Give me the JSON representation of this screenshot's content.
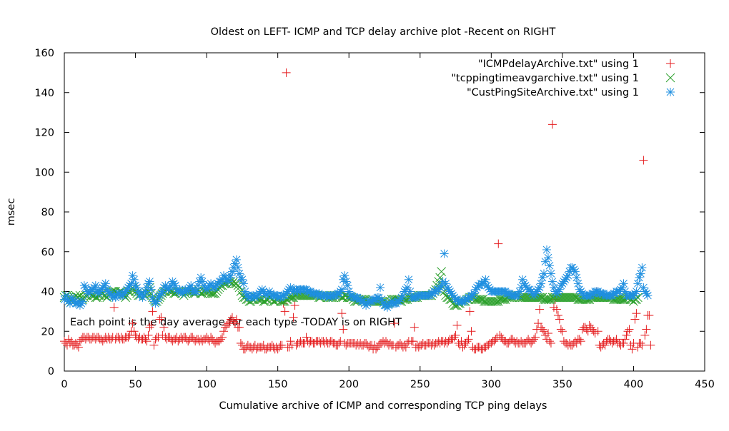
{
  "chart_data": {
    "type": "scatter",
    "title": "Oldest on LEFT- ICMP and TCP delay archive plot -Recent on RIGHT",
    "xlabel": "Cumulative archive of ICMP and corresponding TCP ping delays",
    "ylabel": "msec",
    "xlim": [
      0,
      450
    ],
    "ylim": [
      0,
      160
    ],
    "xticks": [
      0,
      50,
      100,
      150,
      200,
      250,
      300,
      350,
      400,
      450
    ],
    "yticks": [
      0,
      20,
      40,
      60,
      80,
      100,
      120,
      140,
      160
    ],
    "grid": false,
    "legend_position": "top-right",
    "annotation": "Each point is the day average for each type -TODAY is on RIGHT",
    "series": [
      {
        "name": "\"ICMPdelayArchive.txt\" using 1",
        "marker": "plus",
        "color": "#e41a1c",
        "values": [
          15,
          14,
          13,
          16,
          14,
          15,
          13,
          13,
          14,
          13,
          12,
          15,
          16,
          17,
          17,
          16,
          17,
          17,
          16,
          16,
          17,
          17,
          16,
          17,
          17,
          16,
          16,
          15,
          16,
          17,
          16,
          17,
          16,
          16,
          17,
          32,
          16,
          17,
          17,
          16,
          17,
          16,
          16,
          17,
          17,
          17,
          18,
          20,
          24,
          20,
          18,
          17,
          16,
          17,
          16,
          16,
          17,
          16,
          15,
          18,
          22,
          23,
          30,
          13,
          16,
          17,
          17,
          26,
          27,
          18,
          22,
          17,
          16,
          17,
          17,
          16,
          15,
          16,
          16,
          17,
          15,
          16,
          17,
          16,
          17,
          17,
          16,
          15,
          16,
          17,
          17,
          16,
          15,
          16,
          16,
          15,
          16,
          15,
          16,
          16,
          17,
          16,
          15,
          17,
          16,
          15,
          14,
          15,
          15,
          15,
          16,
          17,
          20,
          22,
          23,
          24,
          24,
          26,
          27,
          25,
          24,
          26,
          22,
          22,
          14,
          13,
          11,
          11,
          12,
          13,
          12,
          12,
          11,
          12,
          13,
          11,
          12,
          12,
          12,
          12,
          13,
          11,
          11,
          12,
          12,
          12,
          13,
          12,
          11,
          12,
          11,
          12,
          13,
          13,
          34,
          30,
          150,
          12,
          12,
          15,
          13,
          27,
          33,
          13,
          14,
          14,
          15,
          14,
          14,
          14,
          17,
          15,
          14,
          15,
          15,
          14,
          14,
          15,
          15,
          15,
          14,
          15,
          15,
          14,
          15,
          14,
          14,
          15,
          15,
          14,
          14,
          13,
          13,
          14,
          15,
          29,
          21,
          14,
          13,
          14,
          14,
          14,
          14,
          14,
          14,
          13,
          14,
          13,
          14,
          13,
          13,
          14,
          14,
          13,
          12,
          13,
          13,
          11,
          13,
          11,
          12,
          13,
          14,
          14,
          15,
          14,
          15,
          14,
          13,
          14,
          13,
          13,
          24,
          12,
          13,
          13,
          14,
          13,
          12,
          13,
          12,
          14,
          15,
          40,
          15,
          15,
          22,
          12,
          13,
          12,
          13,
          13,
          14,
          13,
          13,
          14,
          14,
          14,
          13,
          14,
          13,
          14,
          14,
          15,
          14,
          15,
          15,
          14,
          15,
          14,
          15,
          16,
          16,
          16,
          17,
          18,
          23,
          14,
          13,
          15,
          12,
          13,
          14,
          15,
          16,
          30,
          20,
          12,
          11,
          11,
          12,
          12,
          12,
          11,
          11,
          12,
          12,
          13,
          13,
          14,
          14,
          15,
          15,
          16,
          17,
          64,
          18,
          17,
          16,
          15,
          15,
          14,
          14,
          15,
          16,
          16,
          15,
          14,
          15,
          14,
          14,
          15,
          14,
          14,
          14,
          15,
          16,
          15,
          14,
          15,
          16,
          17,
          21,
          24,
          31,
          22,
          21,
          20,
          18,
          16,
          19,
          15,
          14,
          124,
          32,
          36,
          31,
          28,
          26,
          21,
          20,
          15,
          14,
          14,
          13,
          14,
          13,
          13,
          14,
          15,
          14,
          16,
          16,
          15,
          21,
          22,
          22,
          21,
          20,
          23,
          22,
          21,
          20,
          19,
          40,
          20,
          13,
          12,
          13,
          14,
          13,
          15,
          16,
          16,
          15,
          14,
          15,
          15,
          16,
          14,
          14,
          13,
          14,
          14,
          16,
          18,
          20,
          21,
          13,
          11,
          14,
          26,
          29,
          12,
          14,
          14,
          13,
          106,
          18,
          21,
          28,
          28,
          13
        ]
      },
      {
        "name": "\"tcppingtimeavgarchive.txt\" using 1",
        "marker": "x",
        "color": "#2ca02c",
        "values": [
          37,
          38,
          38,
          37,
          36,
          35,
          36,
          37,
          38,
          37,
          37,
          38,
          37,
          36,
          37,
          38,
          38,
          39,
          39,
          38,
          38,
          38,
          37,
          37,
          38,
          38,
          39,
          39,
          38,
          38,
          37,
          38,
          39,
          40,
          40,
          40,
          40,
          39,
          39,
          40,
          40,
          39,
          38,
          37,
          38,
          40,
          40,
          41,
          42,
          41,
          40,
          39,
          38,
          38,
          39,
          39,
          38,
          38,
          39,
          40,
          42,
          39,
          37,
          36,
          35,
          35,
          36,
          37,
          38,
          39,
          40,
          40,
          41,
          41,
          40,
          40,
          40,
          39,
          39,
          40,
          40,
          40,
          40,
          39,
          38,
          39,
          40,
          40,
          40,
          40,
          40,
          39,
          39,
          40,
          41,
          40,
          39,
          39,
          40,
          40,
          40,
          40,
          40,
          39,
          39,
          39,
          39,
          40,
          41,
          42,
          43,
          43,
          44,
          44,
          44,
          45,
          45,
          45,
          44,
          45,
          44,
          44,
          43,
          42,
          40,
          38,
          37,
          37,
          36,
          36,
          35,
          35,
          36,
          36,
          37,
          37,
          36,
          36,
          36,
          36,
          35,
          35,
          36,
          36,
          37,
          37,
          36,
          35,
          35,
          36,
          36,
          36,
          35,
          35,
          35,
          35,
          36,
          36,
          37,
          37,
          37,
          37,
          38,
          38,
          38,
          38,
          38,
          38,
          38,
          38,
          38,
          38,
          38,
          38,
          38,
          38,
          38,
          38,
          38,
          37,
          37,
          38,
          38,
          38,
          38,
          37,
          37,
          37,
          37,
          37,
          38,
          38,
          38,
          38,
          38,
          37,
          37,
          38,
          38,
          37,
          37,
          37,
          37,
          36,
          35,
          35,
          35,
          36,
          36,
          36,
          36,
          36,
          36,
          35,
          35,
          35,
          35,
          35,
          35,
          35,
          35,
          35,
          35,
          35,
          35,
          35,
          34,
          34,
          34,
          35,
          36,
          36,
          36,
          36,
          36,
          36,
          35,
          35,
          36,
          36,
          36,
          36,
          37,
          37,
          37,
          37,
          37,
          37,
          37,
          38,
          38,
          38,
          38,
          38,
          38,
          38,
          38,
          38,
          38,
          39,
          40,
          41,
          43,
          45,
          47,
          50,
          42,
          40,
          38,
          37,
          37,
          36,
          36,
          34,
          33,
          33,
          33,
          34,
          34,
          35,
          35,
          35,
          35,
          36,
          36,
          37,
          37,
          37,
          37,
          36,
          36,
          36,
          36,
          36,
          36,
          35,
          35,
          35,
          35,
          35,
          35,
          35,
          35,
          35,
          35,
          35,
          36,
          36,
          36,
          36,
          36,
          37,
          37,
          37,
          37,
          37,
          38,
          38,
          38,
          38,
          37,
          37,
          37,
          37,
          37,
          37,
          37,
          37,
          37,
          37,
          37,
          37,
          37,
          37,
          37,
          37,
          37,
          36,
          36,
          36,
          36,
          36,
          36,
          37,
          37,
          37,
          37,
          37,
          37,
          37,
          37,
          37,
          37,
          37,
          37,
          37,
          37,
          37,
          37,
          37,
          37,
          36,
          36,
          36,
          36,
          36,
          36,
          36,
          36,
          36,
          37,
          37,
          37,
          37,
          37,
          37,
          37,
          37,
          37,
          37,
          37,
          37,
          37,
          37,
          37,
          37,
          36,
          36,
          36,
          36,
          36,
          36,
          36,
          36,
          36,
          37,
          37,
          37,
          36,
          36,
          35,
          36,
          36,
          37
        ]
      },
      {
        "name": "\"CustPingSiteArchive.txt\" using 1",
        "marker": "star",
        "color": "#1f8fe0",
        "values": [
          36,
          38,
          36,
          35,
          34,
          37,
          36,
          35,
          34,
          34,
          35,
          33,
          34,
          35,
          43,
          42,
          40,
          39,
          40,
          41,
          41,
          42,
          43,
          40,
          39,
          40,
          41,
          42,
          43,
          44,
          41,
          40,
          39,
          38,
          37,
          38,
          37,
          38,
          39,
          39,
          38,
          38,
          39,
          40,
          41,
          42,
          43,
          44,
          48,
          46,
          43,
          42,
          40,
          38,
          39,
          37,
          38,
          40,
          42,
          44,
          45,
          41,
          37,
          35,
          34,
          35,
          37,
          38,
          39,
          40,
          42,
          43,
          42,
          41,
          42,
          43,
          45,
          44,
          43,
          41,
          40,
          41,
          40,
          39,
          40,
          41,
          40,
          41,
          42,
          43,
          41,
          40,
          40,
          40,
          43,
          45,
          47,
          45,
          43,
          42,
          41,
          42,
          43,
          44,
          43,
          42,
          42,
          43,
          44,
          45,
          45,
          46,
          48,
          47,
          46,
          45,
          47,
          48,
          50,
          52,
          54,
          56,
          52,
          49,
          47,
          46,
          44,
          40,
          38,
          38,
          37,
          37,
          38,
          38,
          37,
          38,
          38,
          39,
          40,
          41,
          40,
          39,
          38,
          39,
          40,
          39,
          38,
          38,
          38,
          38,
          38,
          37,
          37,
          38,
          38,
          38,
          39,
          40,
          41,
          42,
          41,
          40,
          41,
          41,
          40,
          41,
          41,
          41,
          41,
          41,
          41,
          40,
          40,
          40,
          39,
          39,
          39,
          39,
          38,
          39,
          38,
          38,
          38,
          38,
          38,
          38,
          37,
          38,
          38,
          38,
          38,
          38,
          39,
          39,
          40,
          41,
          46,
          48,
          45,
          43,
          40,
          38,
          38,
          37,
          37,
          37,
          37,
          36,
          36,
          35,
          35,
          34,
          33,
          34,
          35,
          35,
          35,
          36,
          36,
          36,
          37,
          37,
          42,
          36,
          34,
          33,
          33,
          32,
          33,
          34,
          35,
          34,
          34,
          34,
          35,
          35,
          36,
          37,
          38,
          40,
          41,
          42,
          46,
          40,
          37,
          37,
          37,
          37,
          38,
          38,
          38,
          38,
          38,
          38,
          38,
          38,
          38,
          38,
          39,
          39,
          40,
          40,
          41,
          41,
          42,
          43,
          45,
          59,
          44,
          42,
          41,
          40,
          39,
          38,
          37,
          36,
          36,
          35,
          35,
          35,
          35,
          35,
          36,
          36,
          37,
          37,
          38,
          38,
          39,
          41,
          42,
          43,
          43,
          44,
          44,
          45,
          46,
          43,
          42,
          41,
          40,
          40,
          40,
          40,
          40,
          40,
          40,
          40,
          40,
          40,
          40,
          39,
          39,
          39,
          38,
          38,
          38,
          38,
          38,
          38,
          40,
          42,
          46,
          44,
          43,
          42,
          41,
          41,
          40,
          39,
          38,
          39,
          40,
          41,
          42,
          44,
          47,
          49,
          55,
          61,
          57,
          53,
          49,
          45,
          42,
          40,
          39,
          40,
          41,
          43,
          44,
          45,
          46,
          47,
          48,
          50,
          52,
          52,
          51,
          50,
          47,
          44,
          41,
          40,
          39,
          38,
          38,
          38,
          38,
          38,
          38,
          39,
          39,
          40,
          40,
          40,
          39,
          39,
          39,
          39,
          38,
          38,
          38,
          38,
          38,
          38,
          39,
          39,
          40,
          40,
          40,
          41,
          42,
          44,
          40,
          38,
          38,
          38,
          38,
          38,
          38,
          39,
          40,
          44,
          47,
          49,
          52,
          42,
          40,
          39,
          38
        ]
      }
    ]
  }
}
